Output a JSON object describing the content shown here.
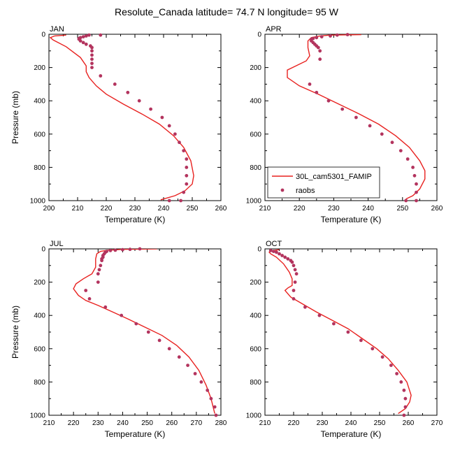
{
  "title": "Resolute_Canada  latitude= 74.7 N longitude= 95 W",
  "colors": {
    "model": "#e8211f",
    "obs": "#b3345e"
  },
  "legend": {
    "model_label": "30L_cam5301_FAMIP",
    "obs_label": "raobs"
  },
  "chart_data": [
    {
      "type": "scatter",
      "panel": "JAN",
      "xlabel": "Temperature (K)",
      "ylabel": "Pressure (mb)",
      "xlim": [
        200,
        260
      ],
      "ylim": [
        1000,
        0
      ],
      "xticks": [
        200,
        210,
        220,
        230,
        240,
        250,
        260
      ],
      "yticks": [
        0,
        200,
        400,
        600,
        800,
        1000
      ],
      "series": [
        {
          "name": "30L_cam5301_FAMIP",
          "kind": "line",
          "x": [
            206,
            202,
            200.5,
            201.5,
            206,
            211,
            213,
            213,
            214,
            216.5,
            220,
            226,
            232.5,
            238.5,
            243.5,
            247,
            249.5,
            250.5,
            250,
            247.5,
            244,
            239
          ],
          "y": [
            5,
            10,
            20,
            35,
            75,
            140,
            190,
            225,
            260,
            310,
            360,
            420,
            480,
            540,
            610,
            680,
            760,
            850,
            900,
            940,
            970,
            995
          ]
        },
        {
          "name": "raobs",
          "kind": "scatter",
          "x": [
            218,
            214,
            213,
            212,
            211,
            210.5,
            210.5,
            211,
            212,
            213,
            214.5,
            215,
            215,
            215,
            215,
            215,
            215,
            218,
            223,
            227.5,
            231.5,
            235.5,
            239.5,
            242,
            244,
            245.5,
            247,
            248,
            248,
            248,
            248,
            247,
            246,
            242
          ],
          "y": [
            5,
            5,
            10,
            15,
            20,
            25,
            30,
            40,
            50,
            60,
            70,
            80,
            100,
            125,
            150,
            175,
            200,
            250,
            300,
            350,
            400,
            450,
            500,
            550,
            600,
            650,
            700,
            750,
            800,
            850,
            900,
            950,
            1000,
            1000
          ]
        }
      ]
    },
    {
      "type": "scatter",
      "panel": "APR",
      "xlabel": "Temperature (K)",
      "ylabel": "",
      "xlim": [
        210,
        260
      ],
      "ylim": [
        1000,
        0
      ],
      "xticks": [
        210,
        220,
        230,
        240,
        250,
        260
      ],
      "yticks": [
        0,
        200,
        400,
        600,
        800,
        1000
      ],
      "series": [
        {
          "name": "30L_cam5301_FAMIP",
          "kind": "line",
          "x": [
            238,
            229,
            226,
            223.5,
            222.5,
            222.5,
            223,
            222,
            219,
            216.5,
            216.5,
            220,
            225.5,
            231.5,
            237.5,
            243,
            248,
            252,
            255,
            256.5,
            256.5,
            255,
            253,
            251
          ],
          "y": [
            2,
            5,
            10,
            20,
            40,
            80,
            130,
            160,
            190,
            215,
            260,
            310,
            360,
            420,
            480,
            540,
            610,
            680,
            760,
            820,
            870,
            930,
            970,
            990
          ]
        },
        {
          "name": "raobs",
          "kind": "scatter",
          "x": [
            234,
            231,
            229,
            226.5,
            225,
            224,
            223.5,
            223.5,
            224,
            224.5,
            225,
            225.5,
            226,
            226,
            223,
            225,
            228.5,
            232.5,
            236.5,
            240.5,
            244,
            247,
            249.5,
            251.5,
            253,
            253.5,
            254,
            254,
            254,
            251
          ],
          "y": [
            2,
            5,
            10,
            15,
            20,
            25,
            30,
            40,
            50,
            60,
            70,
            80,
            100,
            150,
            300,
            350,
            400,
            450,
            500,
            550,
            600,
            650,
            700,
            750,
            800,
            850,
            900,
            950,
            1000,
            1000
          ]
        }
      ]
    },
    {
      "type": "scatter",
      "panel": "JUL",
      "xlabel": "Temperature (K)",
      "ylabel": "Pressure (mb)",
      "xlim": [
        210,
        280
      ],
      "ylim": [
        1000,
        0
      ],
      "xticks": [
        210,
        220,
        230,
        240,
        250,
        260,
        270,
        280
      ],
      "yticks": [
        0,
        200,
        400,
        600,
        800,
        1000
      ],
      "series": [
        {
          "name": "30L_cam5301_FAMIP",
          "kind": "line",
          "x": [
            254,
            240,
            234,
            231,
            229.5,
            229,
            229,
            227.5,
            224,
            221,
            220,
            222,
            225,
            230,
            236,
            242,
            249,
            256,
            262,
            267,
            271,
            274,
            276,
            277.5
          ],
          "y": [
            0,
            3,
            8,
            15,
            30,
            60,
            110,
            150,
            180,
            210,
            240,
            280,
            310,
            340,
            380,
            420,
            470,
            520,
            580,
            650,
            730,
            820,
            900,
            990
          ]
        },
        {
          "name": "raobs",
          "kind": "scatter",
          "x": [
            247,
            243,
            240,
            237,
            235,
            233.5,
            233,
            232.5,
            232,
            232,
            231.5,
            231.5,
            231,
            230.5,
            230,
            230,
            225,
            226.5,
            233,
            239.5,
            245.5,
            250.5,
            255,
            259,
            263,
            266.5,
            269.5,
            272,
            274.5,
            276,
            277.5,
            278
          ],
          "y": [
            0,
            3,
            5,
            8,
            10,
            15,
            20,
            30,
            40,
            50,
            60,
            70,
            100,
            125,
            150,
            200,
            250,
            300,
            350,
            400,
            450,
            500,
            550,
            600,
            650,
            700,
            750,
            800,
            850,
            900,
            950,
            1000
          ]
        }
      ]
    },
    {
      "type": "scatter",
      "panel": "OCT",
      "xlabel": "Temperature (K)",
      "ylabel": "",
      "xlim": [
        210,
        270
      ],
      "ylim": [
        1000,
        0
      ],
      "xticks": [
        210,
        220,
        230,
        240,
        250,
        260,
        270
      ],
      "yticks": [
        0,
        200,
        400,
        600,
        800,
        1000
      ],
      "series": [
        {
          "name": "30L_cam5301_FAMIP",
          "kind": "line",
          "x": [
            215,
            212.5,
            211.5,
            212,
            214,
            216.5,
            218.5,
            219.5,
            219.5,
            218,
            217,
            219,
            223,
            228,
            233.5,
            239,
            244,
            249,
            253,
            256.5,
            259.5,
            261,
            260.5,
            259,
            256.5
          ],
          "y": [
            5,
            10,
            20,
            30,
            50,
            90,
            140,
            180,
            220,
            235,
            250,
            290,
            330,
            380,
            430,
            480,
            540,
            600,
            660,
            730,
            800,
            880,
            920,
            960,
            990
          ]
        },
        {
          "name": "raobs",
          "kind": "scatter",
          "x": [
            212,
            213,
            214,
            215,
            216,
            217,
            218,
            219,
            219.5,
            220,
            220.5,
            221,
            220.5,
            220,
            220,
            224,
            229,
            234,
            239,
            243.5,
            247.5,
            251,
            254,
            256,
            257.5,
            258.5,
            259,
            259,
            258.5
          ],
          "y": [
            10,
            15,
            20,
            30,
            40,
            50,
            60,
            70,
            80,
            100,
            125,
            150,
            200,
            250,
            300,
            350,
            400,
            450,
            500,
            550,
            600,
            650,
            700,
            750,
            800,
            850,
            900,
            950,
            1000
          ]
        }
      ]
    }
  ]
}
